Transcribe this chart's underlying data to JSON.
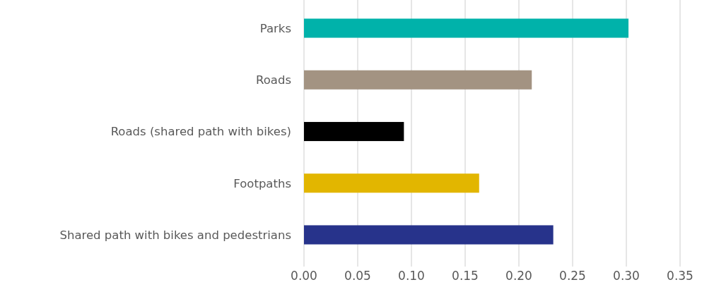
{
  "chart_data": {
    "type": "bar",
    "orientation": "horizontal",
    "categories": [
      "Parks",
      "Roads",
      "Roads (shared path with bikes)",
      "Footpaths",
      "Shared path with bikes and pedestrians"
    ],
    "values": [
      0.302,
      0.212,
      0.093,
      0.163,
      0.232
    ],
    "colors": [
      "#00b2aa",
      "#a39382",
      "#000000",
      "#e2b600",
      "#27338b"
    ],
    "xlim": [
      0,
      0.35
    ],
    "xticks": [
      {
        "value": 0,
        "label": "0.00"
      },
      {
        "value": 0.05,
        "label": "0.05"
      },
      {
        "value": 0.1,
        "label": "0.10"
      },
      {
        "value": 0.15,
        "label": "0.15"
      },
      {
        "value": 0.2,
        "label": "0.20"
      },
      {
        "value": 0.25,
        "label": "0.25"
      },
      {
        "value": 0.3,
        "label": "0.30"
      },
      {
        "value": 0.35,
        "label": "0.35"
      }
    ],
    "grid": "x"
  }
}
